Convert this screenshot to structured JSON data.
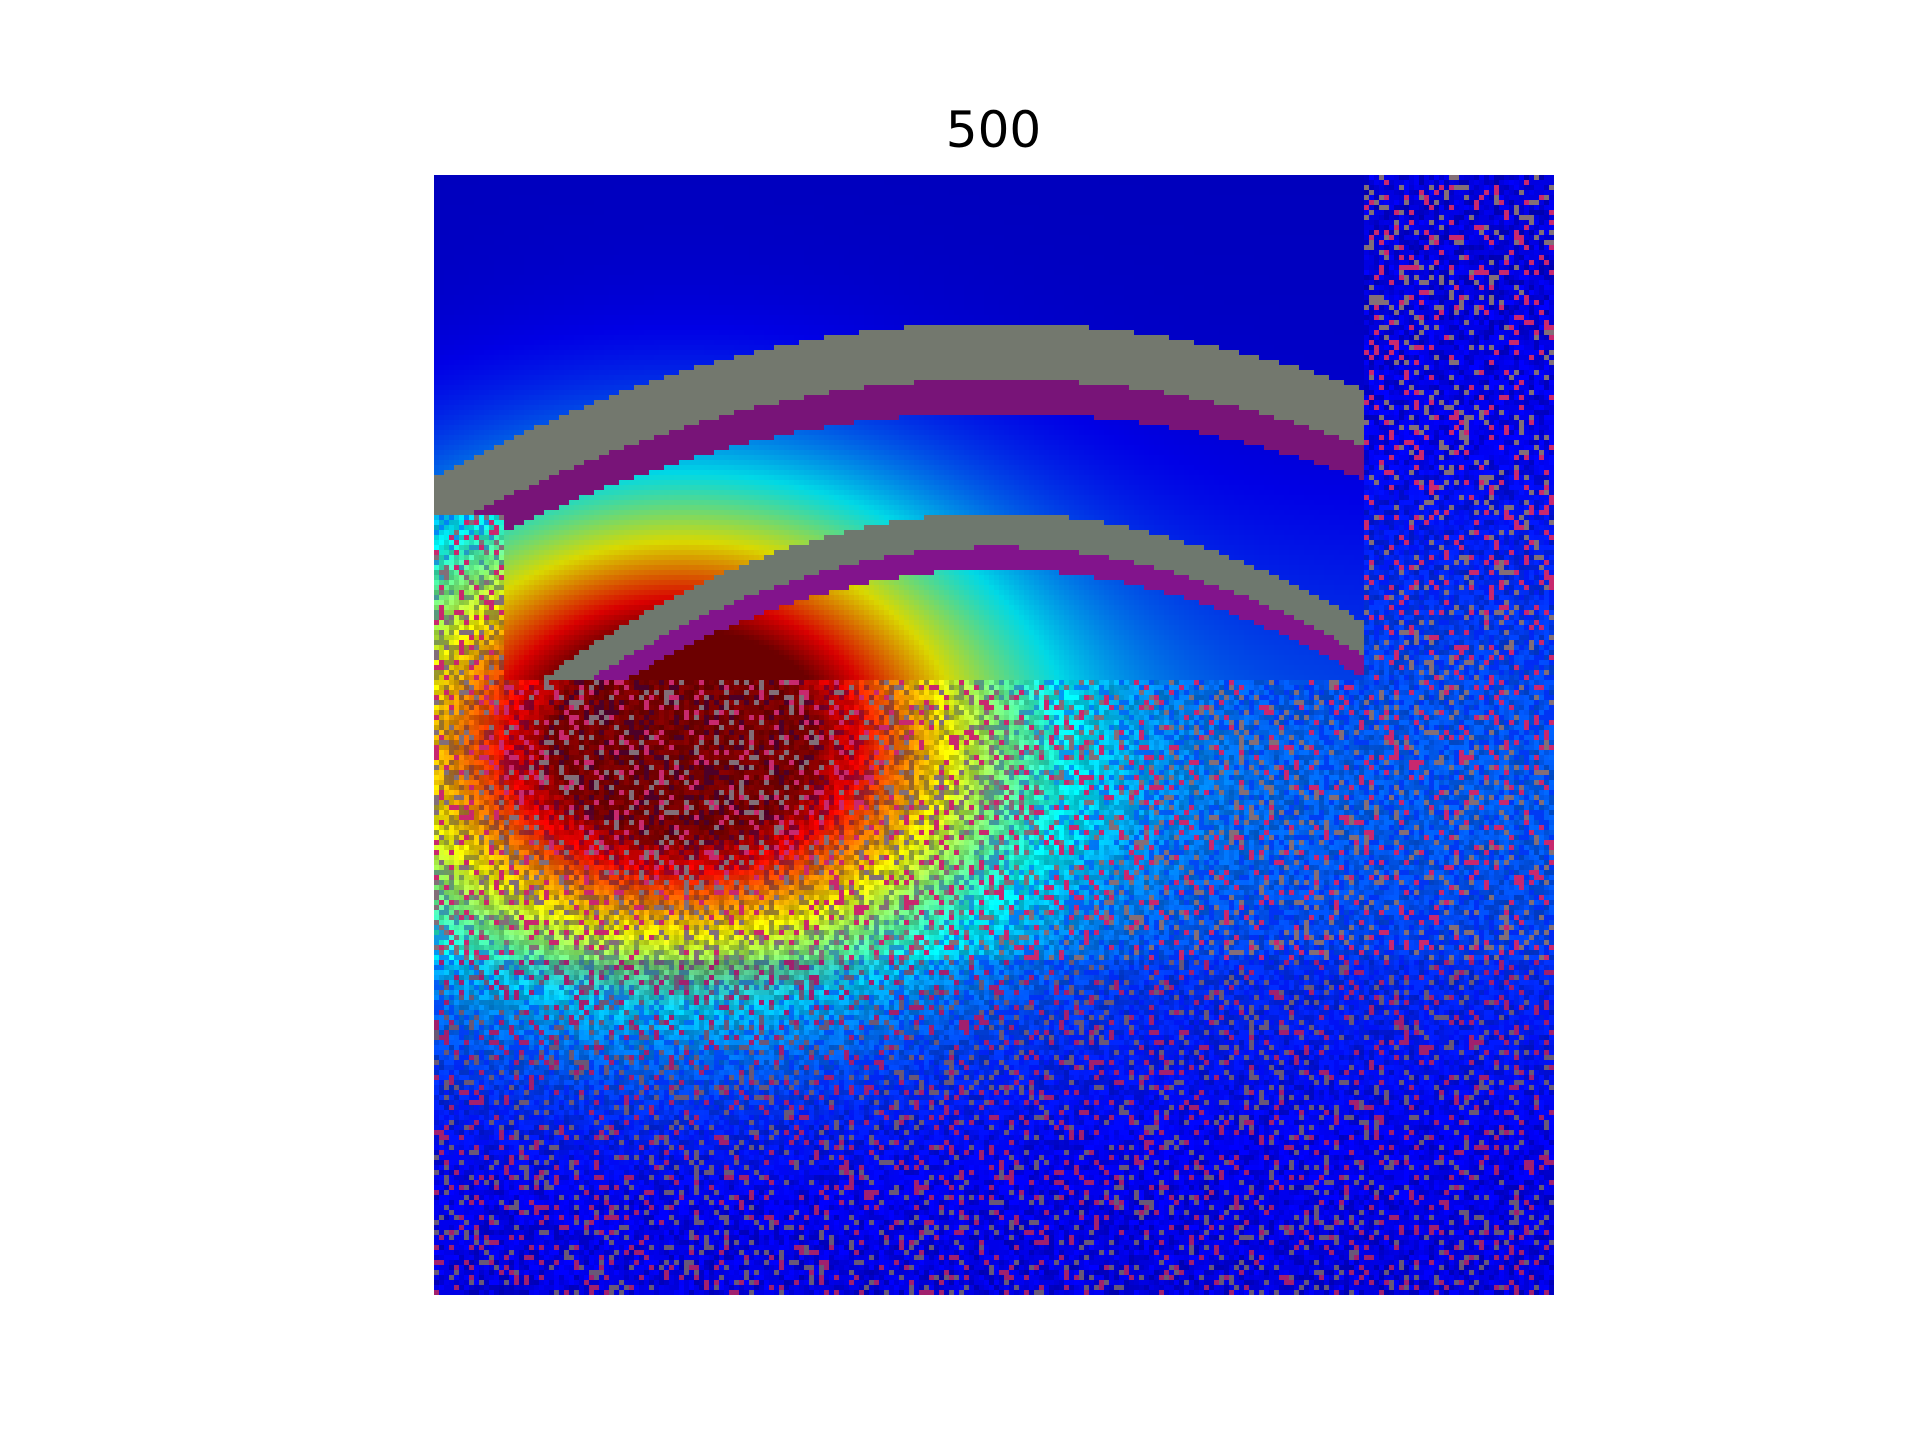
{
  "figure": {
    "title": "500"
  },
  "image": {
    "description_type": "heatmap-overlay",
    "colormap": "jet",
    "hotspot_color": "#8b1a1a",
    "background_color": "#3a46d8"
  }
}
